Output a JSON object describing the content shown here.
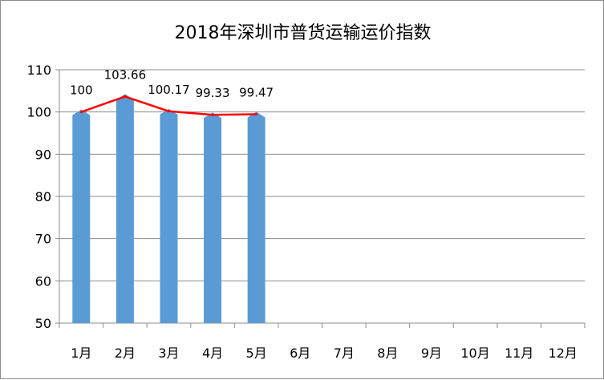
{
  "chart_data": {
    "type": "bar",
    "title": "2018年深圳市普货运输运价指数",
    "categories": [
      "1月",
      "2月",
      "3月",
      "4月",
      "5月",
      "6月",
      "7月",
      "8月",
      "9月",
      "10月",
      "11月",
      "12月"
    ],
    "series": [
      {
        "type": "bar",
        "values": [
          100,
          103.66,
          100.17,
          99.33,
          99.47,
          null,
          null,
          null,
          null,
          null,
          null,
          null
        ],
        "color": "#5b9bd5"
      },
      {
        "type": "line",
        "values": [
          100,
          103.66,
          100.17,
          99.33,
          99.47,
          null,
          null,
          null,
          null,
          null,
          null,
          null
        ],
        "color": "#ff0000"
      }
    ],
    "data_labels": [
      "100",
      "103.66",
      "100.17",
      "99.33",
      "99.47"
    ],
    "ylim": [
      50,
      110
    ],
    "yticks": [
      50,
      60,
      70,
      80,
      90,
      100,
      110
    ],
    "grid": true,
    "legend": "none"
  }
}
